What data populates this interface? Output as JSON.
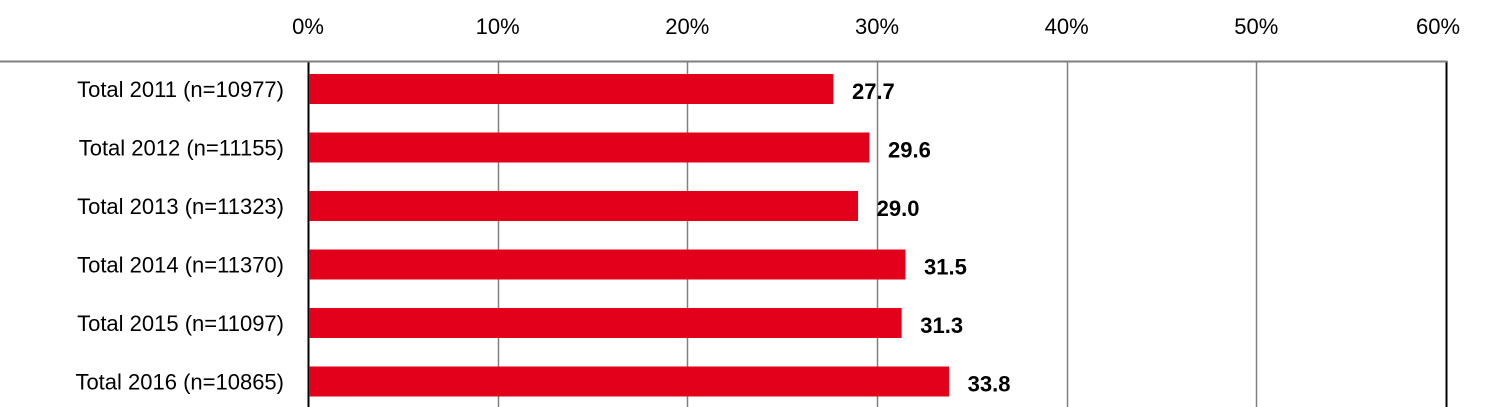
{
  "chart_data": {
    "type": "bar",
    "orientation": "horizontal",
    "categories": [
      "Total 2011 (n=10977)",
      "Total 2012 (n=11155)",
      "Total 2013 (n=11323)",
      "Total 2014 (n=11370)",
      "Total 2015 (n=11097)",
      "Total 2016 (n=10865)"
    ],
    "values": [
      27.7,
      29.6,
      29.0,
      31.5,
      31.3,
      33.8
    ],
    "data_labels": [
      "27.7",
      "29.6",
      "29.0",
      "31.5",
      "31.3",
      "33.8"
    ],
    "xlim": [
      0,
      60
    ],
    "x_ticks": [
      0,
      10,
      20,
      30,
      40,
      50,
      60
    ],
    "x_tick_labels": [
      "0%",
      "10%",
      "20%",
      "30%",
      "40%",
      "50%",
      "60%"
    ],
    "axis_position": "top",
    "grid": true,
    "bar_color": "#E2001A",
    "grid_color": "#808080",
    "title": "",
    "xlabel": "",
    "ylabel": ""
  }
}
